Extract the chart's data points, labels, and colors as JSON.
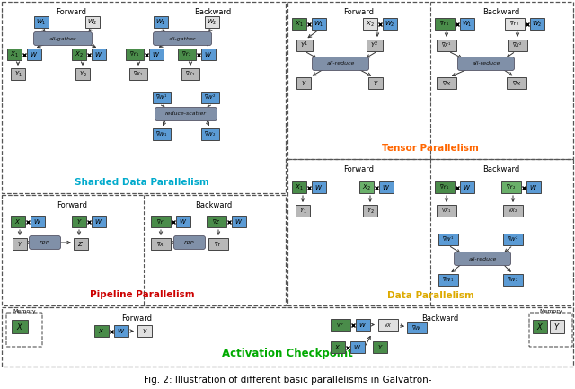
{
  "title": "Fig. 2: Illustration of different basic parallelisms in Galvatron-",
  "bg_color": "#ffffff",
  "G": "#4a8c4a",
  "B": "#5b9bd5",
  "W": "#e0e0e0",
  "GR": "#b8b8b8",
  "OP": "#8090a8",
  "sections": {
    "sharded_data": {
      "label": "Sharded Data Parallelism",
      "color": "#00aacc"
    },
    "tensor": {
      "label": "Tensor Parallelism",
      "color": "#ff6600"
    },
    "pipeline": {
      "label": "Pipeline Parallelism",
      "color": "#cc0000"
    },
    "data": {
      "label": "Data Parallelism",
      "color": "#ddaa00"
    },
    "activation": {
      "label": "Activation Checkpoint",
      "color": "#00aa00"
    }
  }
}
